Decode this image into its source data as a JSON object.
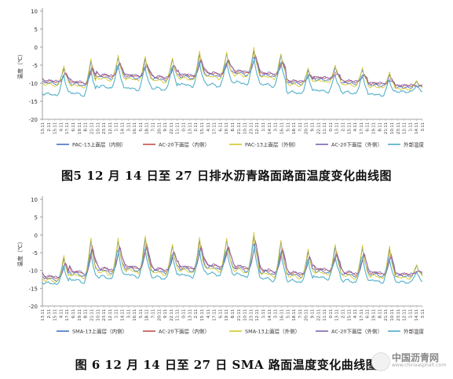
{
  "figures": [
    {
      "caption": "图5   12 月 14 日至 27 日排水沥青路面路面温度变化曲线图"
    },
    {
      "caption": "图 6   12 月 14 日至 27 日 SMA 路面温度变化曲线图"
    }
  ],
  "watermark": {
    "title": "中国沥青网",
    "url": "www.chinaasphalt.com"
  },
  "chart_data": [
    {
      "type": "line",
      "ylabel": "温度（℃）",
      "ylim": [
        -20,
        10
      ],
      "yticks": [
        -20,
        -15,
        -10,
        -5,
        0,
        5,
        10
      ],
      "grid": false,
      "legend_position": "bottom",
      "xtick_labels": [
        "13:11",
        "2:11",
        "15:11",
        "4:11",
        "17:11",
        "6:11",
        "19:11",
        "8:11",
        "21:11",
        "10:11",
        "23:11",
        "12:11",
        "1:11",
        "14:11",
        "3:11",
        "16:11",
        "5:11",
        "18:11",
        "7:11",
        "20:11",
        "9:11",
        "22:11",
        "11:11",
        "0:11",
        "13:11",
        "2:11",
        "15:11",
        "4:11",
        "17:11",
        "6:11",
        "19:11",
        "8:11",
        "21:11",
        "10:11",
        "23:11",
        "12:11",
        "1:11",
        "14:11",
        "3:11",
        "16:11",
        "5:11",
        "18:11",
        "7:11",
        "20:11",
        "9:11",
        "22:11",
        "11:11",
        "0:11",
        "13:11",
        "2:11",
        "15:11",
        "4:11",
        "17:11",
        "6:11",
        "19:11",
        "8:11",
        "21:11",
        "10:11",
        "23:11",
        "12:11",
        "1:11",
        "14:11",
        "3:11"
      ],
      "series": [
        {
          "name": "PAC-13上面层（内侧）",
          "color": "#4472c4"
        },
        {
          "name": "AC-20下面层（内侧）",
          "color": "#c0504d"
        },
        {
          "name": "PAC-13上面层（外侧）",
          "color": "#d4c62a"
        },
        {
          "name": "AC-20下面层（外侧）",
          "color": "#7f63b0"
        },
        {
          "name": "外部温度",
          "color": "#4bacc6"
        }
      ],
      "daily": {
        "days": 14,
        "surface_peak": [
          -5.5,
          -3.5,
          -2.5,
          -3.0,
          -3.0,
          -1.5,
          -1.5,
          -0.5,
          -2.0,
          -6.0,
          -5.5,
          -6.0,
          -7.5,
          -9.5
        ],
        "surface_low": [
          -10.5,
          -11.0,
          -9.0,
          -9.0,
          -9.5,
          -9.0,
          -8.5,
          -8.0,
          -8.5,
          -10.5,
          -9.5,
          -10.5,
          -11.0,
          -11.5
        ],
        "air_peak": [
          -7.0,
          -5.0,
          -4.0,
          -4.5,
          -4.5,
          -3.0,
          -3.0,
          -1.5,
          -3.0,
          -7.0,
          -7.0,
          -7.0,
          -8.5,
          -10.5
        ],
        "air_low": [
          -13.5,
          -13.5,
          -11.5,
          -12.0,
          -12.0,
          -11.0,
          -11.0,
          -10.5,
          -11.0,
          -13.0,
          -12.5,
          -13.0,
          -13.5,
          -12.5
        ]
      }
    },
    {
      "type": "line",
      "ylabel": "温度（℃）",
      "ylim": [
        -20,
        10
      ],
      "yticks": [
        -20,
        -15,
        -10,
        -5,
        0,
        5,
        10
      ],
      "grid": false,
      "legend_position": "bottom",
      "xtick_labels": [
        "13:11",
        "2:11",
        "15:11",
        "4:11",
        "17:11",
        "6:11",
        "19:11",
        "8:11",
        "21:11",
        "10:11",
        "23:11",
        "12:11",
        "1:11",
        "14:11",
        "3:11",
        "16:11",
        "5:11",
        "18:11",
        "7:11",
        "20:11",
        "9:11",
        "22:11",
        "11:11",
        "0:11",
        "13:11",
        "2:11",
        "15:11",
        "4:11",
        "17:11",
        "6:11",
        "19:11",
        "8:11",
        "21:11",
        "10:11",
        "23:11",
        "12:11",
        "1:11",
        "14:11",
        "3:11",
        "16:11",
        "5:11",
        "18:11",
        "7:11",
        "20:11",
        "9:11",
        "22:11",
        "11:11",
        "0:11",
        "13:11",
        "2:11",
        "15:11",
        "4:11",
        "17:11",
        "6:11",
        "19:11",
        "8:11",
        "21:11",
        "10:11",
        "23:11",
        "12:11",
        "1:11",
        "14:11",
        "3:11"
      ],
      "series": [
        {
          "name": "SMA-13上面层（内侧）",
          "color": "#4472c4"
        },
        {
          "name": "AC-20下面层（内侧）",
          "color": "#c0504d"
        },
        {
          "name": "SMA-13上面层（外侧）",
          "color": "#d4c62a"
        },
        {
          "name": "AC-20下面层（外侧）",
          "color": "#7f63b0"
        },
        {
          "name": "外部温度",
          "color": "#4bacc6"
        }
      ],
      "daily": {
        "days": 14,
        "surface_peak": [
          -6.0,
          -1.0,
          -1.0,
          -0.5,
          -2.5,
          -1.0,
          -1.0,
          0.5,
          -1.5,
          -4.0,
          -3.0,
          -3.0,
          -3.5,
          -8.5
        ],
        "surface_low": [
          -13.0,
          -12.0,
          -11.0,
          -10.5,
          -11.0,
          -10.5,
          -10.0,
          -10.5,
          -11.5,
          -12.0,
          -11.0,
          -12.0,
          -12.0,
          -12.0
        ],
        "air_peak": [
          -8.0,
          -3.5,
          -3.0,
          -2.5,
          -4.5,
          -3.0,
          -3.0,
          -1.0,
          -3.5,
          -6.0,
          -5.0,
          -5.0,
          -5.5,
          -10.0
        ],
        "air_low": [
          -14.0,
          -13.5,
          -12.5,
          -12.0,
          -12.5,
          -12.0,
          -11.5,
          -12.0,
          -13.0,
          -13.5,
          -12.5,
          -13.5,
          -13.5,
          -13.5
        ]
      }
    }
  ]
}
